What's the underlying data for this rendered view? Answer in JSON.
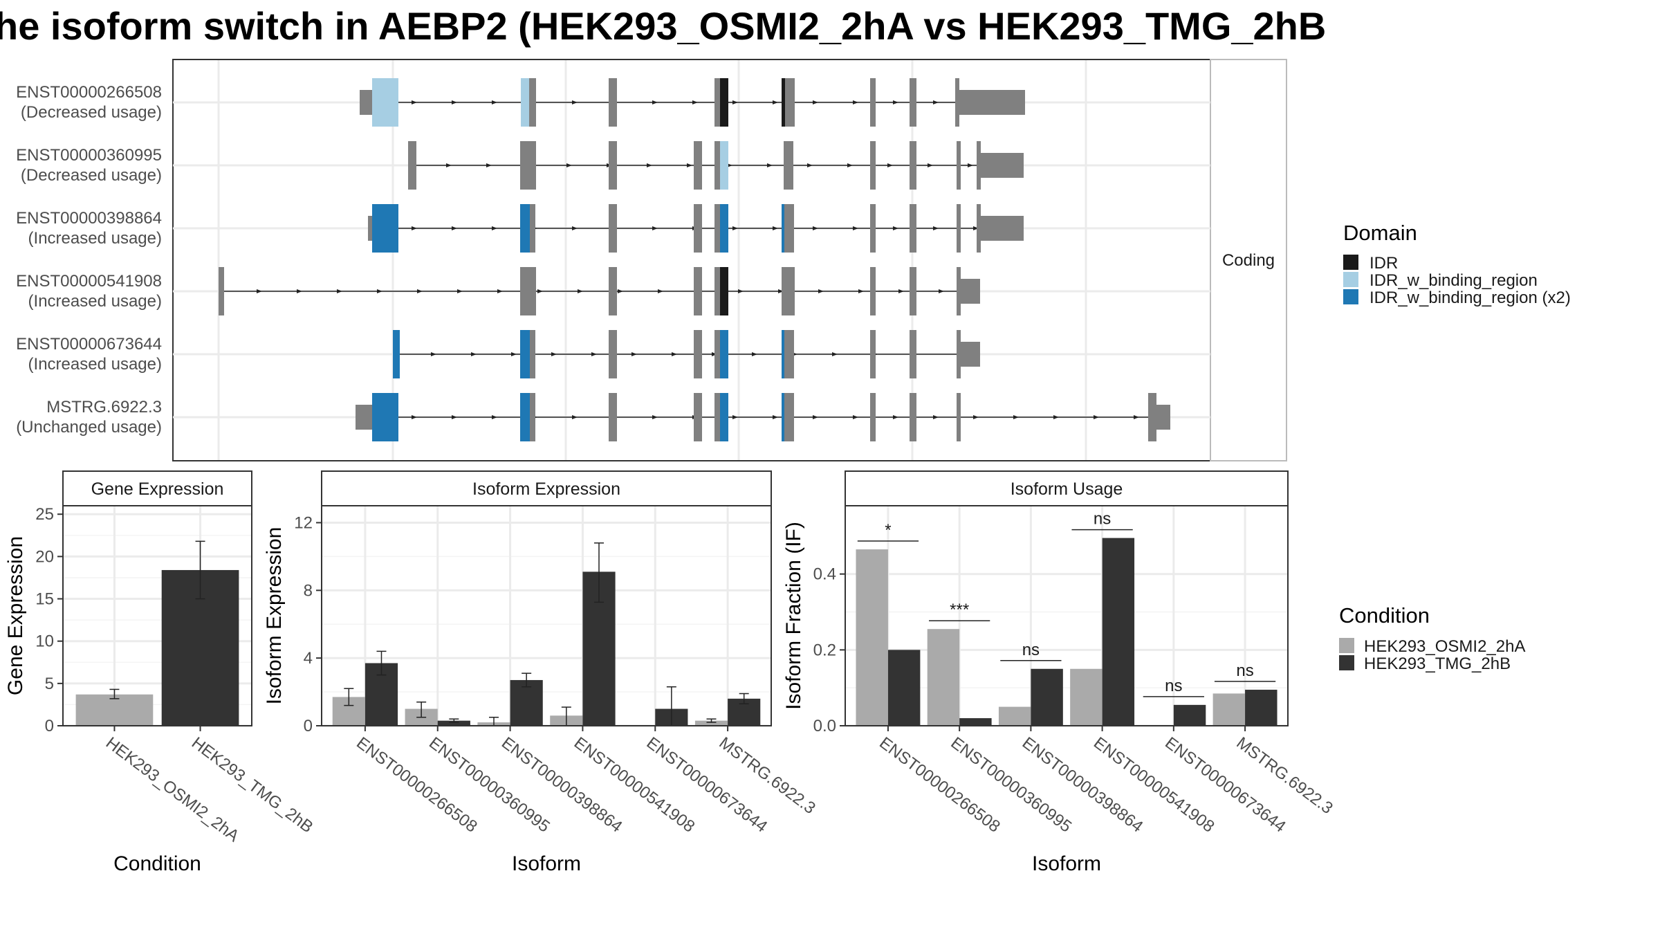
{
  "title": "he isoform switch in AEBP2 (HEK293_OSMI2_2hA vs HEK293_TMG_2hB",
  "colors": {
    "idr": "#1a1a1a",
    "idr_binding": "#a6cee3",
    "idr_binding_x2": "#1f78b4",
    "exon": "#808080",
    "cond_a": "#aaaaaa",
    "cond_b": "#333333"
  },
  "chart_data": [
    {
      "type": "gene-structure",
      "strip_label": "Coding",
      "transcripts": [
        {
          "id": "ENST00000266508",
          "usage": "(Decreased usage)"
        },
        {
          "id": "ENST00000360995",
          "usage": "(Decreased usage)"
        },
        {
          "id": "ENST00000398864",
          "usage": "(Increased usage)"
        },
        {
          "id": "ENST00000541908",
          "usage": "(Increased usage)"
        },
        {
          "id": "ENST00000673644",
          "usage": "(Increased usage)"
        },
        {
          "id": "MSTRG.6922.3",
          "usage": "(Unchanged usage)"
        }
      ],
      "legend": {
        "title": "Domain",
        "entries": [
          {
            "label": "IDR",
            "color": "#1a1a1a"
          },
          {
            "label": "IDR_w_binding_region",
            "color": "#a6cee3"
          },
          {
            "label": "IDR_w_binding_region (x2)",
            "color": "#1f78b4"
          }
        ]
      }
    },
    {
      "type": "bar",
      "panel_title": "Gene Expression",
      "xlabel": "Condition",
      "ylabel": "Gene Expression",
      "ylim": [
        0,
        26
      ],
      "yticks": [
        0,
        5,
        10,
        15,
        20,
        25
      ],
      "categories": [
        "HEK293_OSMI2_2hA",
        "HEK293_TMG_2hB"
      ],
      "values": [
        3.7,
        18.4
      ],
      "errors": [
        [
          3.2,
          4.3
        ],
        [
          15.0,
          21.8
        ]
      ]
    },
    {
      "type": "bar",
      "panel_title": "Isoform Expression",
      "xlabel": "Isoform",
      "ylabel": "Isoform Expression",
      "ylim": [
        0,
        13
      ],
      "yticks": [
        0,
        4,
        8,
        12
      ],
      "categories": [
        "ENST00000266508",
        "ENST00000360995",
        "ENST00000398864",
        "ENST00000541908",
        "ENST00000673644",
        "MSTRG.6922.3"
      ],
      "series": [
        {
          "name": "HEK293_OSMI2_2hA",
          "values": [
            1.7,
            1.0,
            0.2,
            0.6,
            0.0,
            0.3
          ],
          "errors": [
            [
              1.2,
              2.2
            ],
            [
              0.5,
              1.4
            ],
            [
              0.0,
              0.5
            ],
            [
              0.0,
              1.1
            ],
            [
              0.0,
              0.0
            ],
            [
              0.2,
              0.4
            ]
          ]
        },
        {
          "name": "HEK293_TMG_2hB",
          "values": [
            3.7,
            0.3,
            2.7,
            9.1,
            1.0,
            1.6
          ],
          "errors": [
            [
              3.0,
              4.4
            ],
            [
              0.2,
              0.4
            ],
            [
              2.3,
              3.1
            ],
            [
              7.3,
              10.8
            ],
            [
              0.0,
              2.3
            ],
            [
              1.3,
              1.9
            ]
          ]
        }
      ]
    },
    {
      "type": "bar",
      "panel_title": "Isoform Usage",
      "xlabel": "Isoform",
      "ylabel": "Isoform Fraction (IF)",
      "ylim": [
        0,
        0.58
      ],
      "yticks": [
        0.0,
        0.2,
        0.4
      ],
      "ytick_labels": [
        "0.0",
        "0.2",
        "0.4"
      ],
      "categories": [
        "ENST00000266508",
        "ENST00000360995",
        "ENST00000398864",
        "ENST00000541908",
        "ENST00000673644",
        "MSTRG.6922.3"
      ],
      "series": [
        {
          "name": "HEK293_OSMI2_2hA",
          "values": [
            0.465,
            0.255,
            0.05,
            0.15,
            0.0,
            0.085
          ]
        },
        {
          "name": "HEK293_TMG_2hB",
          "values": [
            0.2,
            0.02,
            0.15,
            0.495,
            0.055,
            0.095
          ]
        }
      ],
      "significance": [
        "*",
        "***",
        "ns",
        "ns",
        "ns",
        "ns"
      ],
      "legend": {
        "title": "Condition",
        "entries": [
          {
            "label": "HEK293_OSMI2_2hA",
            "color": "#aaaaaa"
          },
          {
            "label": "HEK293_TMG_2hB",
            "color": "#333333"
          }
        ]
      }
    }
  ]
}
